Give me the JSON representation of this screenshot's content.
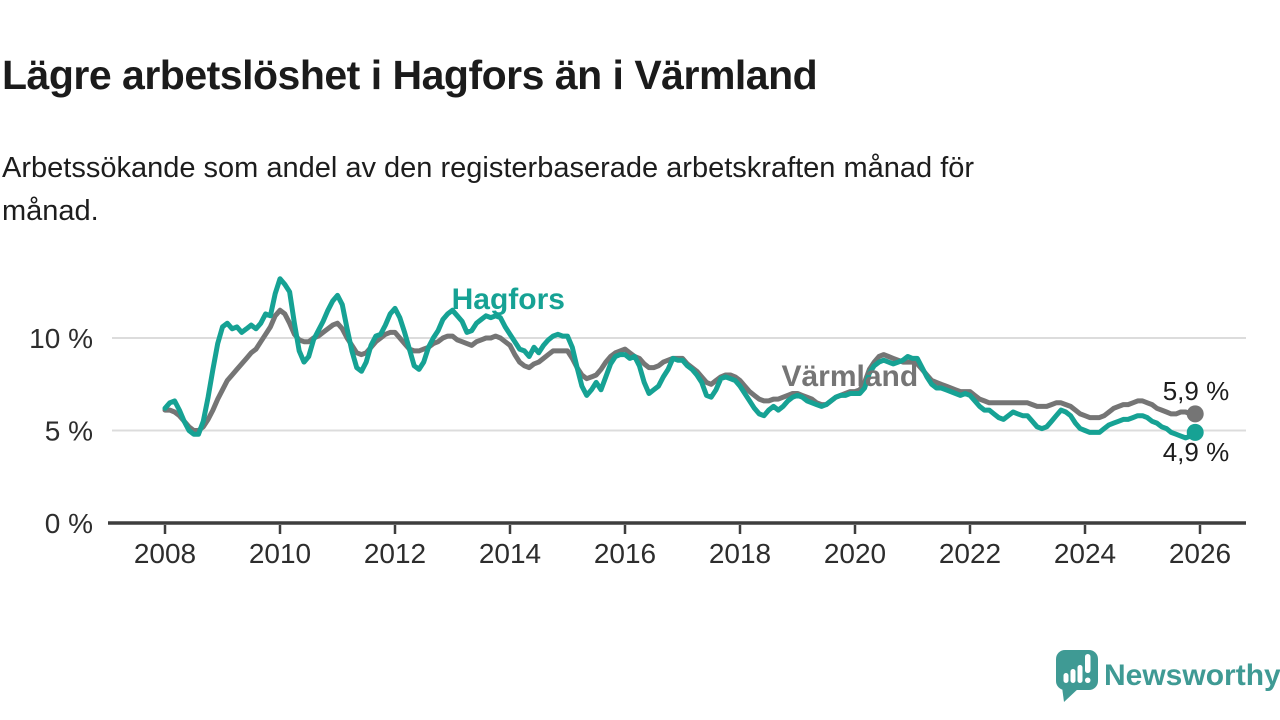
{
  "title": "Lägre arbetslöshet i Hagfors än i Värmland",
  "subtitle_lines": [
    "Arbetssökande som andel av den registerbaserade arbetskraften månad för",
    "månad."
  ],
  "logo": {
    "text": "Newsworthy",
    "color": "#3f9a94",
    "icon": "speech-bubble-bar-chart-icon"
  },
  "colors": {
    "hagfors": "#16a294",
    "varmland": "#757575",
    "grid": "#dcdcdc",
    "axis": "#3d3d3d",
    "tick_text": "#2d2d2d",
    "value_text": "#1d1d1d"
  },
  "chart_data": {
    "type": "line",
    "unit": "%",
    "grid": "horizontal-only",
    "x_axis": {
      "start_year": 2008.0,
      "step_years": 0.0833333,
      "ticks": [
        2008,
        2010,
        2012,
        2014,
        2016,
        2018,
        2020,
        2022,
        2024,
        2026
      ]
    },
    "y_axis": {
      "range": [
        0,
        14.3
      ],
      "ticks": [
        {
          "value": 0,
          "label": "0 %"
        },
        {
          "value": 5,
          "label": "5 %"
        },
        {
          "value": 10,
          "label": "10 %"
        }
      ]
    },
    "series": [
      {
        "name": "Värmland",
        "color": "#757575",
        "label_anchor": {
          "x": 2019.91,
          "y": 7.95
        },
        "end_value_label": "5,9 %",
        "end_label_anchor": {
          "x": 2025.93,
          "y": 7.14
        },
        "values": [
          6.1,
          6.1,
          6.0,
          5.8,
          5.5,
          5.2,
          5.0,
          5.0,
          5.2,
          5.6,
          6.1,
          6.7,
          7.2,
          7.7,
          8.0,
          8.3,
          8.6,
          8.9,
          9.2,
          9.4,
          9.8,
          10.2,
          10.6,
          11.2,
          11.5,
          11.3,
          10.8,
          10.2,
          9.9,
          9.8,
          9.8,
          10.0,
          10.1,
          10.3,
          10.5,
          10.7,
          10.8,
          10.5,
          10.0,
          9.6,
          9.2,
          9.1,
          9.2,
          9.5,
          9.8,
          10.0,
          10.2,
          10.3,
          10.3,
          10.0,
          9.7,
          9.4,
          9.3,
          9.3,
          9.4,
          9.5,
          9.7,
          9.8,
          10.0,
          10.1,
          10.1,
          9.9,
          9.8,
          9.7,
          9.6,
          9.8,
          9.9,
          10.0,
          10.0,
          10.1,
          10.0,
          9.8,
          9.6,
          9.1,
          8.7,
          8.5,
          8.4,
          8.6,
          8.7,
          8.9,
          9.1,
          9.3,
          9.3,
          9.3,
          9.3,
          8.9,
          8.4,
          8.0,
          7.8,
          7.9,
          8.0,
          8.3,
          8.7,
          9.0,
          9.2,
          9.3,
          9.4,
          9.2,
          9.0,
          8.9,
          8.6,
          8.4,
          8.4,
          8.5,
          8.7,
          8.8,
          8.9,
          8.9,
          8.9,
          8.6,
          8.4,
          8.2,
          7.9,
          7.6,
          7.5,
          7.7,
          7.9,
          8.0,
          8.0,
          7.9,
          7.7,
          7.4,
          7.1,
          6.9,
          6.7,
          6.6,
          6.6,
          6.7,
          6.7,
          6.8,
          6.9,
          7.0,
          7.0,
          6.9,
          6.8,
          6.7,
          6.5,
          6.4,
          6.4,
          6.6,
          6.8,
          6.9,
          7.0,
          7.1,
          7.1,
          7.2,
          7.6,
          8.3,
          8.7,
          9.0,
          9.1,
          9.0,
          8.9,
          8.8,
          8.7,
          8.7,
          8.7,
          8.6,
          8.3,
          8.0,
          7.7,
          7.6,
          7.5,
          7.4,
          7.3,
          7.2,
          7.1,
          7.1,
          7.1,
          6.9,
          6.7,
          6.6,
          6.5,
          6.5,
          6.5,
          6.5,
          6.5,
          6.5,
          6.5,
          6.5,
          6.5,
          6.4,
          6.3,
          6.3,
          6.3,
          6.4,
          6.5,
          6.5,
          6.4,
          6.3,
          6.1,
          5.9,
          5.8,
          5.7,
          5.7,
          5.7,
          5.8,
          6.0,
          6.2,
          6.3,
          6.4,
          6.4,
          6.5,
          6.6,
          6.6,
          6.5,
          6.4,
          6.2,
          6.1,
          6.0,
          5.9,
          5.9,
          6.0,
          6.0,
          5.9,
          5.9
        ]
      },
      {
        "name": "Hagfors",
        "color": "#16a294",
        "label_anchor": {
          "x": 2013.97,
          "y": 12.1
        },
        "end_value_label": "4,9 %",
        "end_label_anchor": {
          "x": 2025.93,
          "y": 3.84
        },
        "values": [
          6.2,
          6.5,
          6.6,
          6.1,
          5.5,
          5.0,
          4.8,
          4.8,
          5.5,
          6.8,
          8.3,
          9.7,
          10.6,
          10.8,
          10.5,
          10.6,
          10.3,
          10.5,
          10.7,
          10.5,
          10.8,
          11.3,
          11.2,
          12.4,
          13.2,
          12.9,
          12.5,
          10.8,
          9.3,
          8.7,
          9.0,
          9.9,
          10.4,
          10.9,
          11.5,
          12.0,
          12.3,
          11.8,
          10.5,
          9.3,
          8.4,
          8.2,
          8.7,
          9.6,
          10.1,
          10.2,
          10.7,
          11.3,
          11.6,
          11.1,
          10.3,
          9.4,
          8.5,
          8.3,
          8.7,
          9.5,
          10.0,
          10.4,
          11.0,
          11.3,
          11.5,
          11.2,
          10.9,
          10.3,
          10.4,
          10.8,
          11.0,
          11.2,
          11.1,
          11.2,
          11.1,
          10.6,
          10.2,
          9.8,
          9.4,
          9.3,
          9.0,
          9.5,
          9.2,
          9.6,
          9.9,
          10.1,
          10.2,
          10.1,
          10.1,
          9.5,
          8.4,
          7.4,
          6.9,
          7.2,
          7.6,
          7.2,
          7.9,
          8.6,
          9.0,
          9.1,
          9.1,
          8.9,
          9.0,
          8.5,
          7.6,
          7.0,
          7.2,
          7.4,
          7.9,
          8.3,
          8.9,
          8.8,
          8.8,
          8.5,
          8.3,
          8.0,
          7.6,
          6.9,
          6.8,
          7.2,
          7.8,
          7.9,
          7.8,
          7.7,
          7.4,
          7.0,
          6.6,
          6.2,
          5.9,
          5.8,
          6.1,
          6.3,
          6.1,
          6.3,
          6.6,
          6.8,
          6.9,
          6.8,
          6.6,
          6.5,
          6.4,
          6.3,
          6.4,
          6.6,
          6.8,
          6.9,
          6.9,
          7.0,
          7.0,
          7.0,
          7.3,
          8.1,
          8.5,
          8.7,
          8.8,
          8.7,
          8.6,
          8.7,
          8.8,
          9.0,
          8.9,
          8.9,
          8.4,
          7.9,
          7.5,
          7.3,
          7.3,
          7.2,
          7.1,
          7.0,
          6.9,
          7.0,
          6.9,
          6.6,
          6.3,
          6.1,
          6.1,
          5.9,
          5.7,
          5.6,
          5.8,
          6.0,
          5.9,
          5.8,
          5.8,
          5.5,
          5.2,
          5.1,
          5.2,
          5.5,
          5.8,
          6.1,
          6.0,
          5.8,
          5.4,
          5.1,
          5.0,
          4.9,
          4.9,
          4.9,
          5.1,
          5.3,
          5.4,
          5.5,
          5.6,
          5.6,
          5.7,
          5.8,
          5.8,
          5.7,
          5.5,
          5.4,
          5.2,
          5.1,
          4.9,
          4.8,
          4.7,
          4.6,
          4.7,
          4.9
        ]
      }
    ]
  }
}
